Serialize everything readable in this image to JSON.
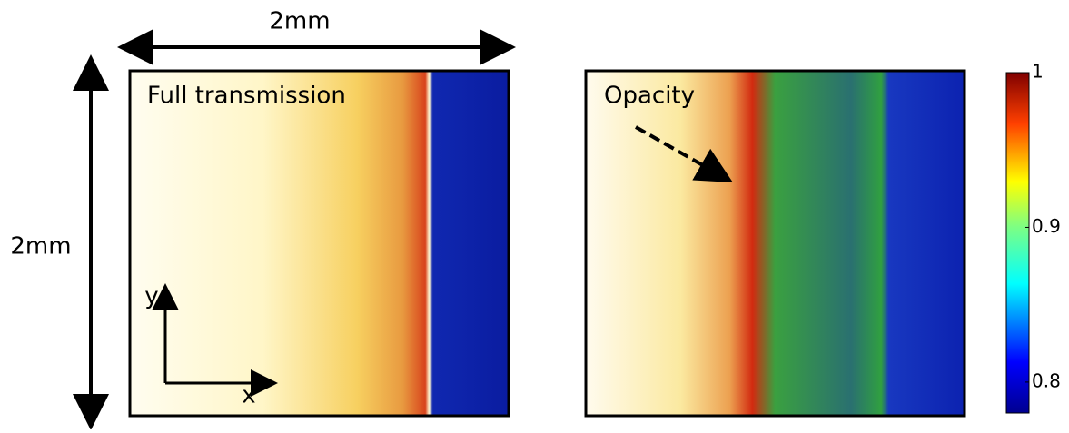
{
  "scale_labels": {
    "width": "2mm",
    "height": "2mm"
  },
  "panels": [
    {
      "label": "Full transmission",
      "axis_y": "y",
      "axis_x": "x"
    },
    {
      "label": "Opacity"
    }
  ],
  "colorbar": {
    "lim": [
      0.78,
      1
    ],
    "ticks": [
      1,
      0.9,
      0.8
    ]
  }
}
